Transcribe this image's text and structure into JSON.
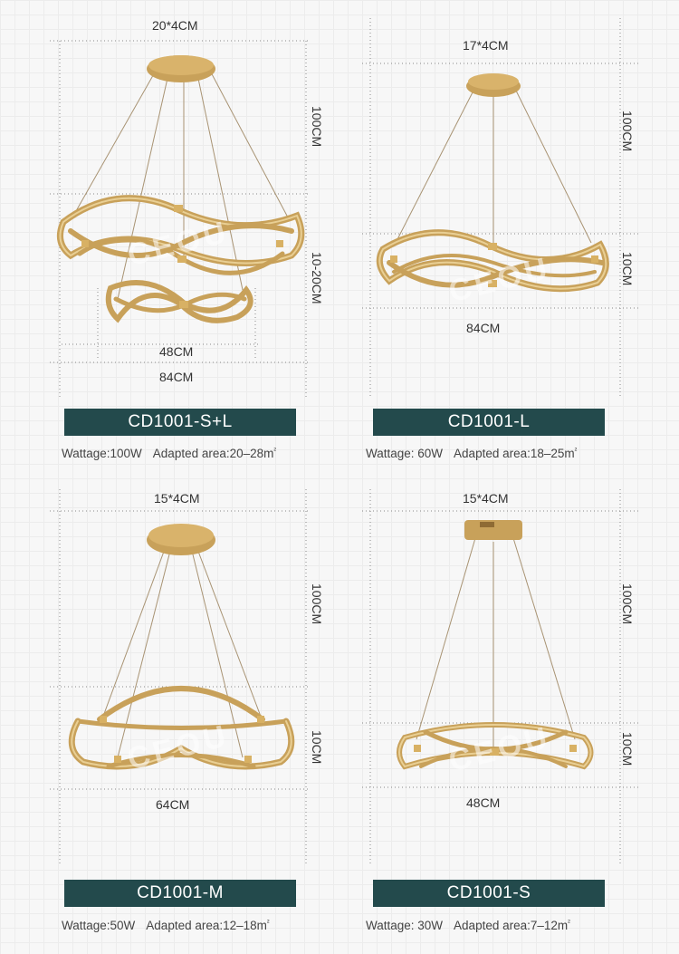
{
  "colors": {
    "label_bg": "#234a4c",
    "gold": "#c8a15a",
    "cable": "#a89373",
    "guide": "#8a8a8a"
  },
  "watermark": "CEOU",
  "products": [
    {
      "top_dim": "20*4CM",
      "height_label": "100CM",
      "drop_label": "10-20CM",
      "width_labels": [
        "48CM",
        "84CM"
      ],
      "model": "CD1001-S+L",
      "wattage": "Wattage:100W",
      "area": "Adapted area:20–28m",
      "area_unit": "²"
    },
    {
      "top_dim": "17*4CM",
      "height_label": "100CM",
      "drop_label": "10CM",
      "width_labels": [
        "84CM"
      ],
      "model": "CD1001-L",
      "wattage": "Wattage: 60W",
      "area": "Adapted area:18–25m",
      "area_unit": "²"
    },
    {
      "top_dim": "15*4CM",
      "height_label": "100CM",
      "drop_label": "10CM",
      "width_labels": [
        "64CM"
      ],
      "model": "CD1001-M",
      "wattage": "Wattage:50W",
      "area": "Adapted area:12–18m",
      "area_unit": "²"
    },
    {
      "top_dim": "15*4CM",
      "height_label": "100CM",
      "drop_label": "10CM",
      "width_labels": [
        "48CM"
      ],
      "model": "CD1001-S",
      "wattage": "Wattage: 30W",
      "area": "Adapted area:7–12m",
      "area_unit": "²"
    }
  ]
}
